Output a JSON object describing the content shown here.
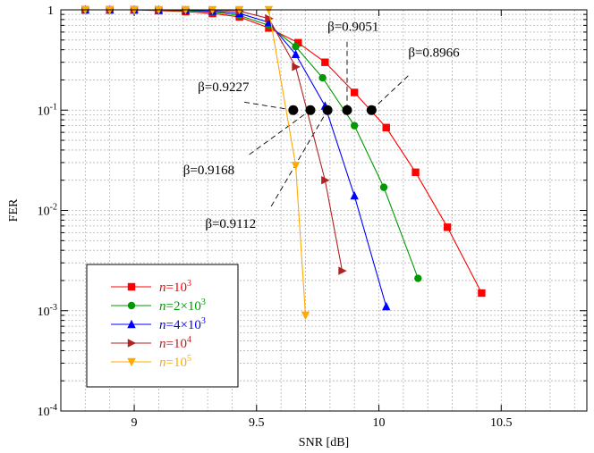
{
  "chart_data": {
    "type": "line",
    "title": "",
    "xlabel": "SNR [dB]",
    "ylabel": "FER",
    "xlim": [
      8.7,
      10.85
    ],
    "ylim_log10": [
      -4,
      0
    ],
    "yscale": "log",
    "grid": true,
    "xticks": [
      9,
      9.5,
      10,
      10.5
    ],
    "xtick_labels": [
      "9",
      "9.5",
      "10",
      "10.5"
    ],
    "yticks": [
      {
        "exp": 0,
        "label": "1",
        "sup": ""
      },
      {
        "exp": -1,
        "label": "10",
        "sup": "-1"
      },
      {
        "exp": -2,
        "label": "10",
        "sup": "-2"
      },
      {
        "exp": -3,
        "label": "10",
        "sup": "-3"
      },
      {
        "exp": -4,
        "label": "10",
        "sup": "-4"
      }
    ],
    "series": [
      {
        "name": "n=10^3",
        "label_n": "n",
        "label_rest": "=10",
        "label_sup": "3",
        "color": "#ff0000",
        "marker": "square",
        "x": [
          8.8,
          8.9,
          9.0,
          9.1,
          9.21,
          9.32,
          9.43,
          9.55,
          9.67,
          9.78,
          9.9,
          10.03,
          10.15,
          10.28,
          10.42
        ],
        "y": [
          1.0,
          1.0,
          1.0,
          0.98,
          0.96,
          0.92,
          0.85,
          0.66,
          0.47,
          0.3,
          0.15,
          0.067,
          0.024,
          0.0068,
          0.0015
        ]
      },
      {
        "name": "n=2x10^3",
        "label_n": "n",
        "label_rest": "=2×10",
        "label_sup": "3",
        "color": "#009900",
        "marker": "circle",
        "x": [
          8.8,
          8.9,
          9.0,
          9.1,
          9.21,
          9.32,
          9.43,
          9.55,
          9.66,
          9.77,
          9.9,
          10.02,
          10.16
        ],
        "y": [
          1.0,
          1.0,
          1.0,
          0.99,
          0.98,
          0.95,
          0.88,
          0.7,
          0.43,
          0.21,
          0.07,
          0.017,
          0.0021
        ]
      },
      {
        "name": "n=4x10^3",
        "label_n": "n",
        "label_rest": "=4×10",
        "label_sup": "3",
        "color": "#0000ff",
        "marker": "triangle-up",
        "x": [
          8.8,
          8.9,
          9.0,
          9.1,
          9.21,
          9.32,
          9.43,
          9.55,
          9.66,
          9.78,
          9.9,
          10.03
        ],
        "y": [
          1.0,
          1.0,
          1.0,
          1.0,
          0.99,
          0.97,
          0.92,
          0.75,
          0.36,
          0.11,
          0.014,
          0.0011
        ]
      },
      {
        "name": "n=10^4",
        "label_n": "n",
        "label_rest": "=10",
        "label_sup": "4",
        "color": "#b22222",
        "marker": "triangle-right",
        "x": [
          8.8,
          8.9,
          9.0,
          9.1,
          9.21,
          9.32,
          9.43,
          9.55,
          9.66,
          9.78,
          9.85
        ],
        "y": [
          1.0,
          1.0,
          1.0,
          1.0,
          1.0,
          0.99,
          0.97,
          0.82,
          0.27,
          0.02,
          0.0025
        ]
      },
      {
        "name": "n=10^5",
        "label_n": "n",
        "label_rest": "=10",
        "label_sup": "5",
        "color": "#ffaa00",
        "marker": "triangle-down",
        "x": [
          8.8,
          8.9,
          9.0,
          9.1,
          9.21,
          9.32,
          9.43,
          9.55,
          9.66,
          9.7
        ],
        "y": [
          1.0,
          1.0,
          1.0,
          1.0,
          1.0,
          1.0,
          1.0,
          1.0,
          0.028,
          0.0009
        ]
      }
    ],
    "threshold_points": {
      "x": [
        9.65,
        9.72,
        9.79,
        9.87,
        9.97
      ],
      "y": [
        0.1,
        0.1,
        0.1,
        0.1,
        0.1
      ],
      "color": "#000000"
    },
    "annotations": [
      {
        "text": "β=0.9227",
        "x": 9.26,
        "y": 0.155,
        "anchor_x": 9.65,
        "anchor_y": 0.1,
        "line_from_x": 9.45,
        "line_from_y": 0.12
      },
      {
        "text": "β=0.9168",
        "x": 9.2,
        "y": 0.023,
        "anchor_x": 9.72,
        "anchor_y": 0.1,
        "line_from_x": 9.47,
        "line_from_y": 0.036
      },
      {
        "text": "β=0.9112",
        "x": 9.29,
        "y": 0.0067,
        "anchor_x": 9.79,
        "anchor_y": 0.1,
        "line_from_x": 9.56,
        "line_from_y": 0.011
      },
      {
        "text": "β=0.9051",
        "x": 9.79,
        "y": 0.62,
        "anchor_x": 9.87,
        "anchor_y": 0.1,
        "line_from_x": 9.87,
        "line_from_y": 0.48
      },
      {
        "text": "β=0.8966",
        "x": 10.12,
        "y": 0.34,
        "anchor_x": 9.97,
        "anchor_y": 0.1,
        "line_from_x": 10.12,
        "line_from_y": 0.22
      }
    ],
    "legend": {
      "placement": "bottom-left"
    }
  }
}
